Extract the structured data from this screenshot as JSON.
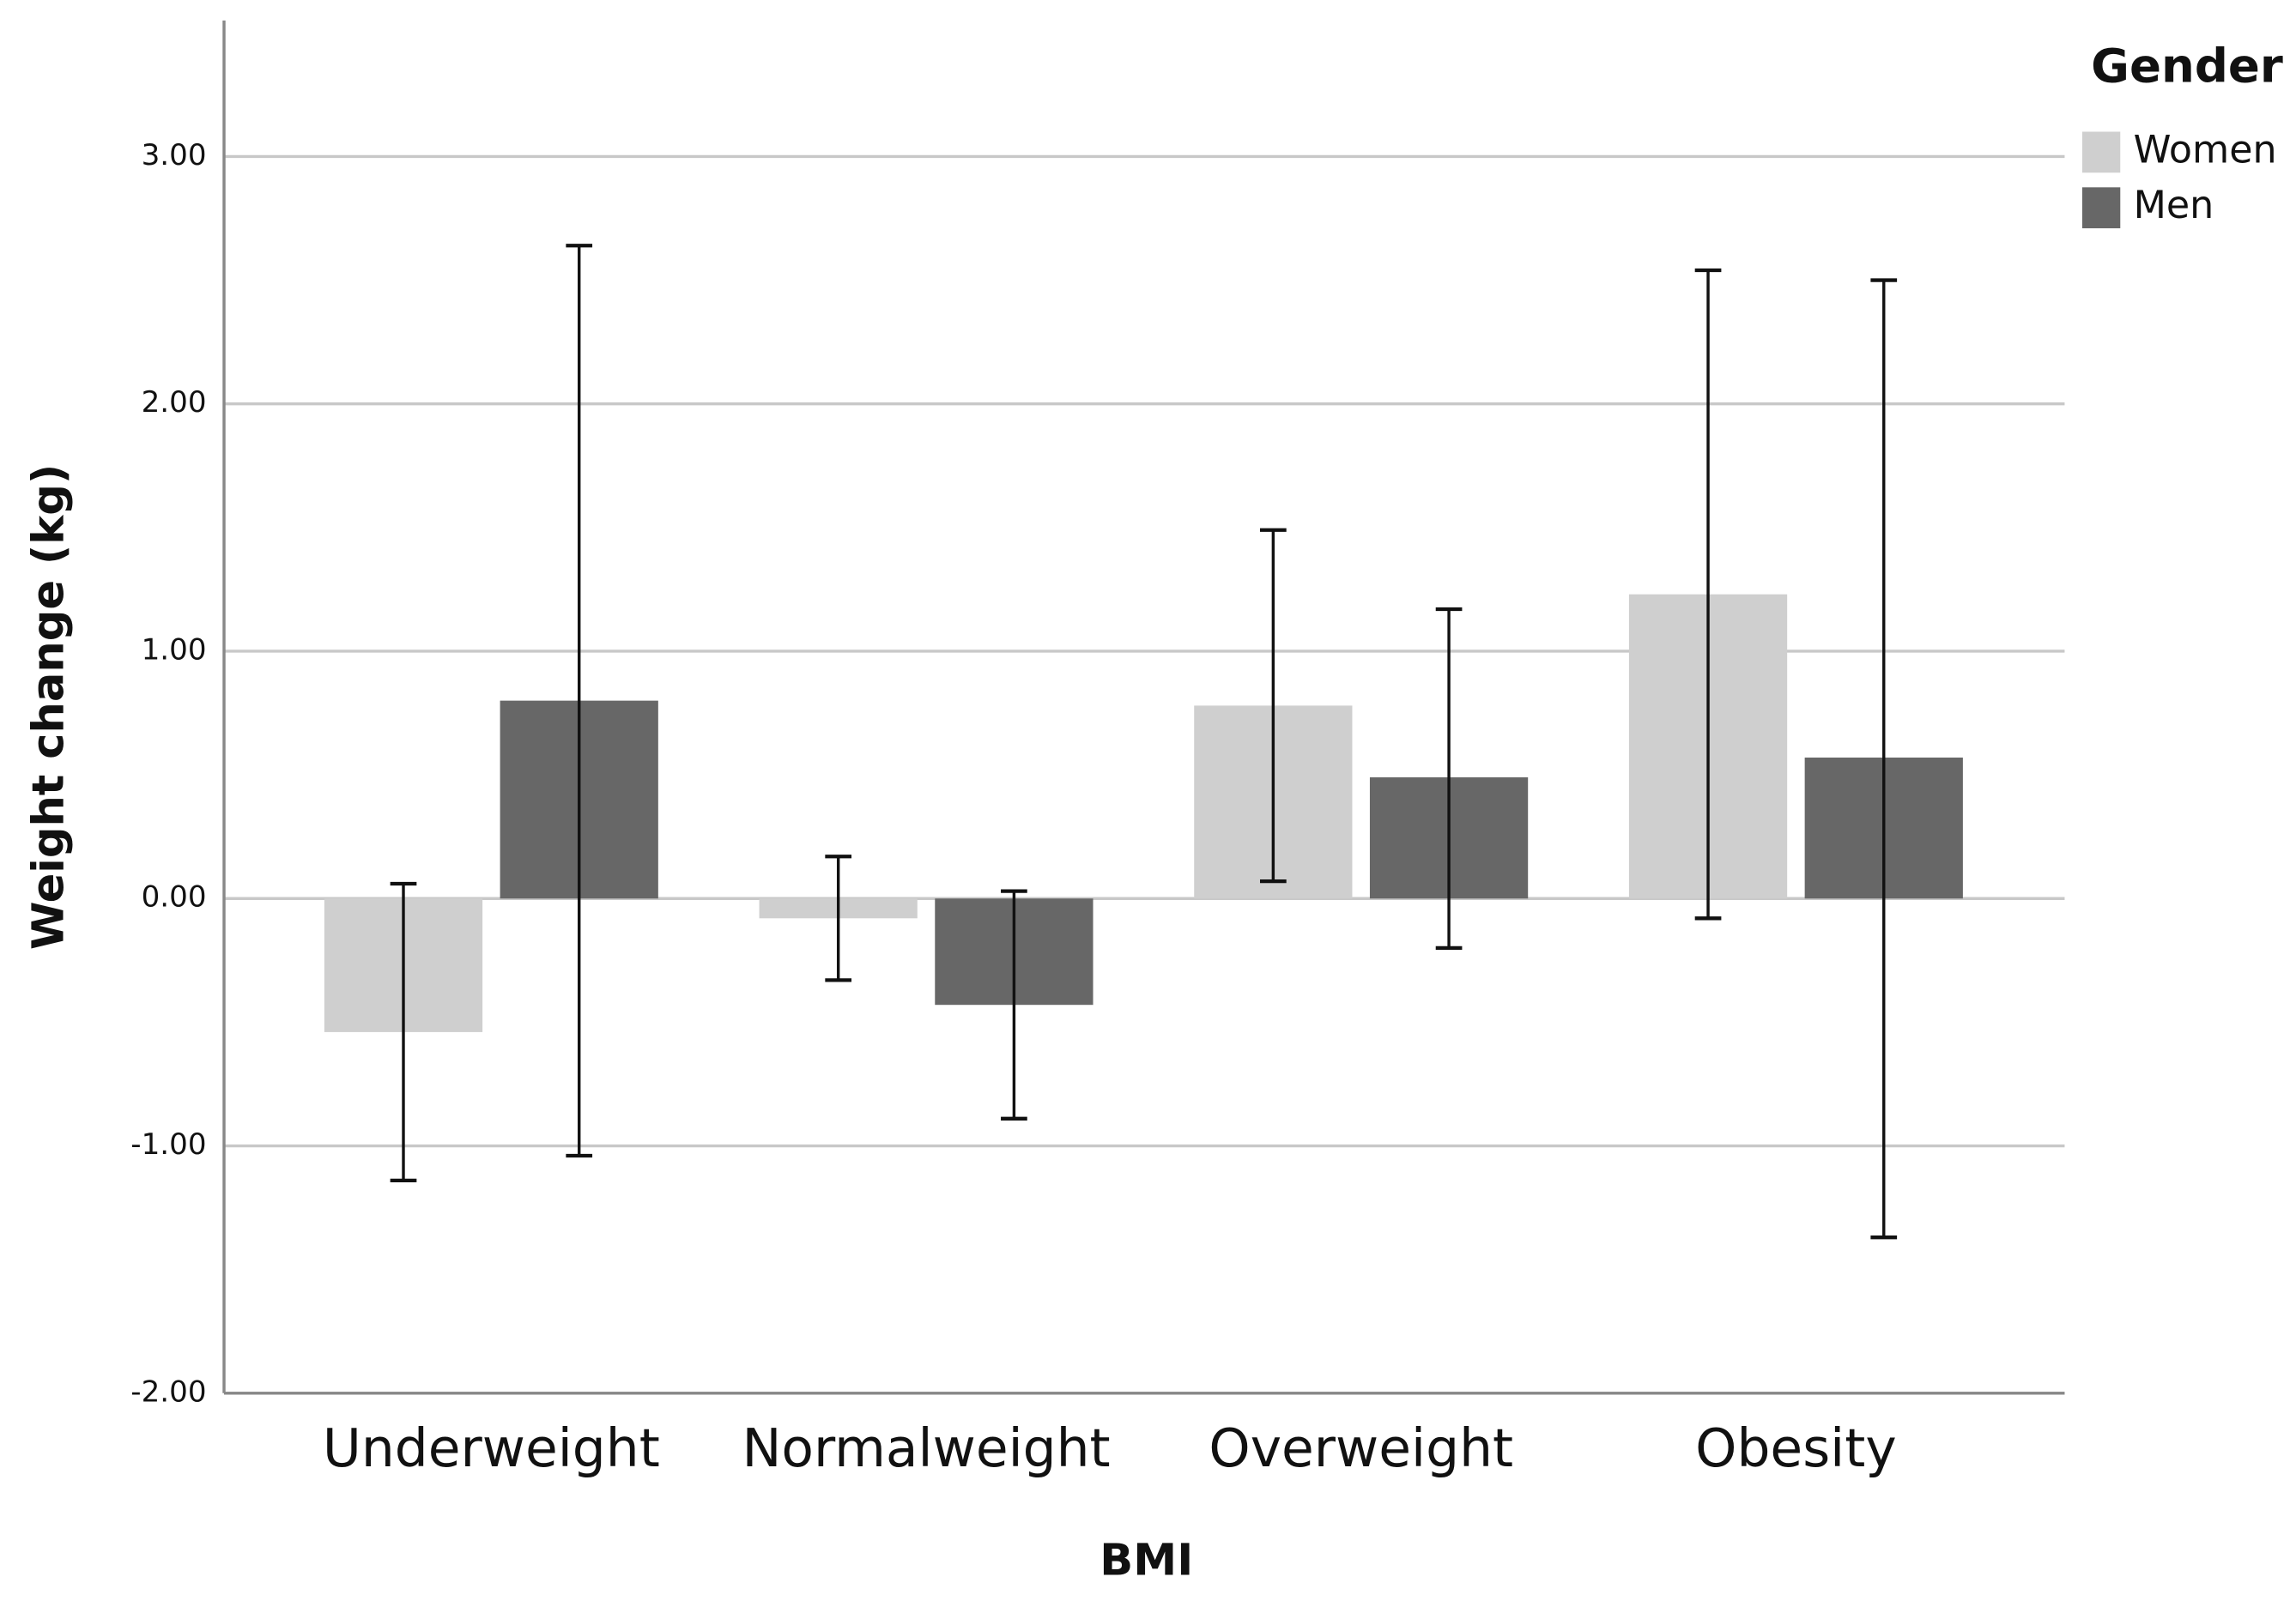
{
  "chart_data": {
    "type": "bar",
    "x_label": "BMI",
    "y_label": "Weight change (kg)",
    "legend_title": "Gender",
    "categories": [
      "Underweight",
      "Normalweight",
      "Overweight",
      "Obesity"
    ],
    "series": [
      {
        "name": "Women",
        "color": "#cfcfcf",
        "values": [
          -0.54,
          -0.08,
          0.78,
          1.23
        ],
        "ci_low": [
          -1.14,
          -0.33,
          0.07,
          -0.08
        ],
        "ci_high": [
          0.06,
          0.17,
          1.49,
          2.54
        ]
      },
      {
        "name": "Men",
        "color": "#676767",
        "values": [
          0.8,
          -0.43,
          0.49,
          0.57
        ],
        "ci_low": [
          -1.04,
          -0.89,
          -0.2,
          -1.37
        ],
        "ci_high": [
          2.64,
          0.03,
          1.17,
          2.5
        ]
      }
    ],
    "ylim": [
      -2,
      3.55
    ],
    "yticks": [
      {
        "value": -2,
        "label": "-2.00"
      },
      {
        "value": -1,
        "label": "-1.00"
      },
      {
        "value": 0,
        "label": "0.00"
      },
      {
        "value": 1,
        "label": "1.00"
      },
      {
        "value": 2,
        "label": "2.00"
      },
      {
        "value": 3,
        "label": "3.00"
      }
    ],
    "grid": true,
    "legend": "top-right"
  }
}
